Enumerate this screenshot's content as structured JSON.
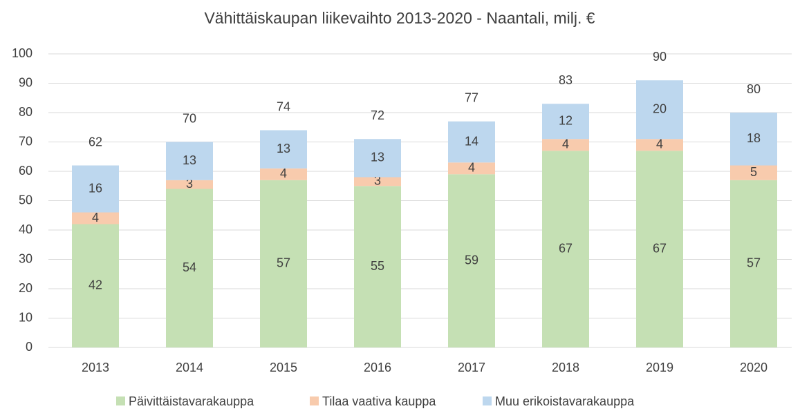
{
  "chart_data": {
    "type": "stacked_bar",
    "title": "Vähittäiskaupan liikevaihto 2013-2020 - Naantali, milj. €",
    "categories": [
      "2013",
      "2014",
      "2015",
      "2016",
      "2017",
      "2018",
      "2019",
      "2020"
    ],
    "series": [
      {
        "name": "Päivittäistavarakauppa",
        "color": "#c5e0b4",
        "values": [
          42,
          54,
          57,
          55,
          59,
          67,
          67,
          57
        ]
      },
      {
        "name": "Tilaa vaativa kauppa",
        "color": "#f8cbad",
        "values": [
          4,
          3,
          4,
          3,
          4,
          4,
          4,
          5
        ]
      },
      {
        "name": "Muu erikoistavarakauppa",
        "color": "#bdd7ee",
        "values": [
          16,
          13,
          13,
          13,
          14,
          12,
          20,
          18
        ]
      }
    ],
    "totals": [
      62,
      70,
      74,
      72,
      77,
      83,
      90,
      80
    ],
    "ylim": [
      0,
      100
    ],
    "yticks": [
      0,
      10,
      20,
      30,
      40,
      50,
      60,
      70,
      80,
      90,
      100
    ],
    "grid": true,
    "legend": "bottom"
  }
}
